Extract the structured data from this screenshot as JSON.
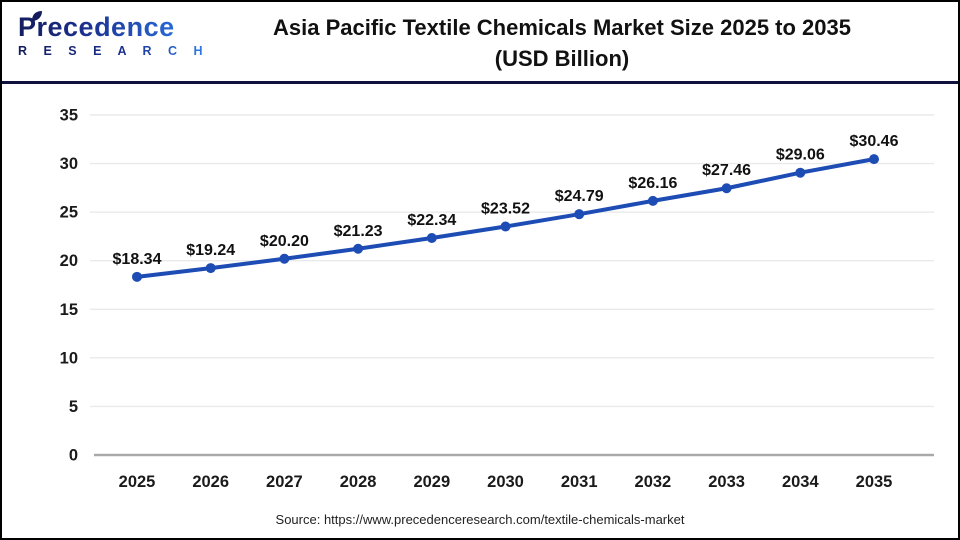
{
  "header": {
    "logo_name": "Precedence",
    "logo_sub": "R E S E A R C H",
    "title_line1": "Asia Pacific Textile Chemicals Market Size 2025 to 2035",
    "title_line2": "(USD Billion)"
  },
  "chart_data": {
    "type": "line",
    "title": "Asia Pacific Textile Chemicals Market Size 2025 to 2035 (USD Billion)",
    "categories": [
      "2025",
      "2026",
      "2027",
      "2028",
      "2029",
      "2030",
      "2031",
      "2032",
      "2033",
      "2034",
      "2035"
    ],
    "values": [
      18.34,
      19.24,
      20.2,
      21.23,
      22.34,
      23.52,
      24.79,
      26.16,
      27.46,
      29.06,
      30.46
    ],
    "point_labels": [
      "$18.34",
      "$19.24",
      "$20.20",
      "$21.23",
      "$22.34",
      "$23.52",
      "$24.79",
      "$26.16",
      "$27.46",
      "$29.06",
      "$30.46"
    ],
    "xlabel": "",
    "ylabel": "",
    "ylim": [
      0,
      35
    ],
    "ytick_step": 5,
    "yticks": [
      0,
      5,
      10,
      15,
      20,
      25,
      30,
      35
    ],
    "grid": true,
    "legend": false,
    "marker": "circle"
  },
  "footer": {
    "source": "Source: https://www.precedenceresearch.com/textile-chemicals-market"
  },
  "colors": {
    "line_blue": "#1d4cb5",
    "divider_navy": "#10123d",
    "grid_gray": "#eaeaea",
    "axis_baseline_gray": "#a9a9a9",
    "tick_text": "#1a1a1a",
    "value_label_text": "#111111",
    "logo_navy": "#131d5e",
    "logo_blue": "#2d7ff0",
    "source_text": "#222222",
    "background": "#ffffff"
  }
}
